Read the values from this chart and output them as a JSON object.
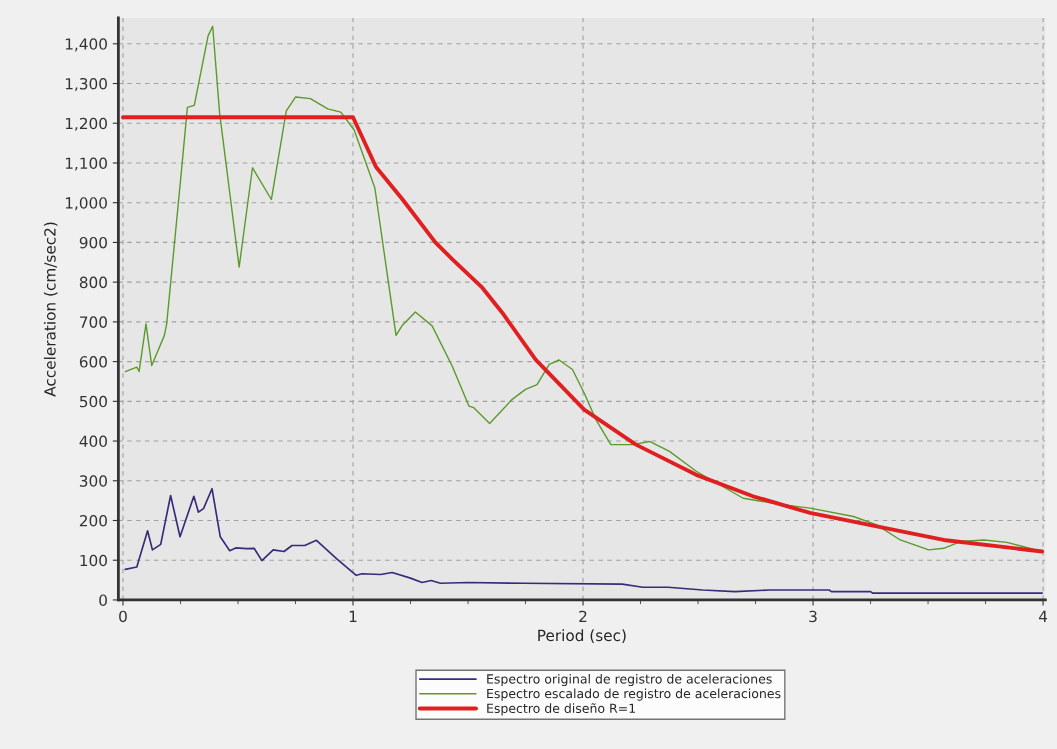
{
  "chart_data": {
    "type": "line",
    "xlabel": "Period (sec)",
    "ylabel": "Acceleration (cm/sec2)",
    "xlim": [
      -0.02,
      4.01
    ],
    "ylim": [
      0,
      1465
    ],
    "xticks": [
      0,
      {
        "value": 0.25,
        "label": null
      },
      {
        "value": 0.5,
        "label": null
      },
      {
        "value": 0.75,
        "label": null
      },
      1,
      {
        "value": 1.25,
        "label": null
      },
      {
        "value": 1.5,
        "label": null
      },
      {
        "value": 1.75,
        "label": null
      },
      2,
      {
        "value": 2.25,
        "label": null
      },
      {
        "value": 2.5,
        "label": null
      },
      {
        "value": 2.75,
        "label": null
      },
      3,
      {
        "value": 3.25,
        "label": null
      },
      {
        "value": 3.5,
        "label": null
      },
      {
        "value": 3.75,
        "label": null
      },
      4
    ],
    "yticks": [
      0,
      100,
      200,
      300,
      400,
      500,
      600,
      700,
      800,
      900,
      {
        "value": 1000,
        "label": "1,000"
      },
      {
        "value": 1100,
        "label": "1,100"
      },
      {
        "value": 1200,
        "label": "1,200"
      },
      {
        "value": 1300,
        "label": "1,300"
      },
      {
        "value": 1400,
        "label": "1,400"
      }
    ],
    "grid": true,
    "legend": "bottom",
    "marker": "none",
    "line_style": "solid",
    "series": [
      {
        "name": "Espectro original de registro de aceleraciones",
        "color": "#3a2a7a",
        "x": [
          0.01,
          0.06,
          0.107,
          0.128,
          0.164,
          0.207,
          0.248,
          0.308,
          0.328,
          0.35,
          0.387,
          0.423,
          0.464,
          0.49,
          0.538,
          0.57,
          0.604,
          0.653,
          0.7,
          0.735,
          0.79,
          0.841,
          0.932,
          1.014,
          1.04,
          1.12,
          1.17,
          1.25,
          1.3,
          1.34,
          1.38,
          1.5,
          1.74,
          2.17,
          2.26,
          2.37,
          2.52,
          2.66,
          2.81,
          3.07,
          3.08,
          3.25,
          3.26,
          3.996
        ],
        "values": [
          77,
          83,
          174,
          126,
          140,
          263,
          159,
          261,
          221,
          230,
          280,
          159,
          124,
          131,
          129,
          130,
          99,
          126,
          122,
          137,
          137,
          150,
          102,
          62,
          66,
          64,
          69,
          55,
          44,
          49,
          42,
          44,
          42,
          40,
          32,
          32,
          25,
          21,
          25,
          25,
          21,
          21,
          17,
          17
        ]
      },
      {
        "name": "Espectro escalado de registro de aceleraciones",
        "color": "#5a9a2a",
        "x": [
          0.01,
          0.06,
          0.07,
          0.1,
          0.125,
          0.18,
          0.19,
          0.25,
          0.28,
          0.31,
          0.37,
          0.39,
          0.42,
          0.505,
          0.563,
          0.645,
          0.71,
          0.75,
          0.815,
          0.89,
          0.947,
          1.005,
          1.095,
          1.187,
          1.213,
          1.271,
          1.344,
          1.431,
          1.504,
          1.525,
          1.594,
          1.692,
          1.75,
          1.8,
          1.853,
          1.896,
          1.954,
          2.005,
          2.056,
          2.121,
          2.216,
          2.289,
          2.376,
          2.492,
          2.696,
          2.841,
          2.987,
          3.176,
          3.277,
          3.379,
          3.503,
          3.568,
          3.641,
          3.743,
          3.843,
          3.996
        ],
        "values": [
          575,
          586,
          575,
          695,
          590,
          666,
          695,
          1055,
          1240,
          1245,
          1420,
          1444,
          1226,
          838,
          1088,
          1008,
          1231,
          1266,
          1262,
          1236,
          1228,
          1183,
          1037,
          666,
          690,
          725,
          690,
          589,
          488,
          484,
          444,
          505,
          530,
          542,
          593,
          604,
          580,
          521,
          454,
          391,
          391,
          399,
          374,
          324,
          256,
          242,
          231,
          210,
          189,
          151,
          126,
          130,
          147,
          151,
          145,
          122
        ]
      },
      {
        "name": "Espectro de diseño R=1",
        "color": "#e02020",
        "x": [
          0.0,
          1.0,
          1.1,
          1.213,
          1.358,
          1.431,
          1.562,
          1.649,
          1.794,
          2.005,
          2.23,
          2.492,
          2.739,
          2.987,
          3.277,
          3.568,
          3.996
        ],
        "values": [
          1215,
          1215,
          1090,
          1010,
          900,
          858,
          786,
          723,
          605,
          479,
          391,
          315,
          261,
          219,
          185,
          151,
          122
        ]
      }
    ]
  }
}
